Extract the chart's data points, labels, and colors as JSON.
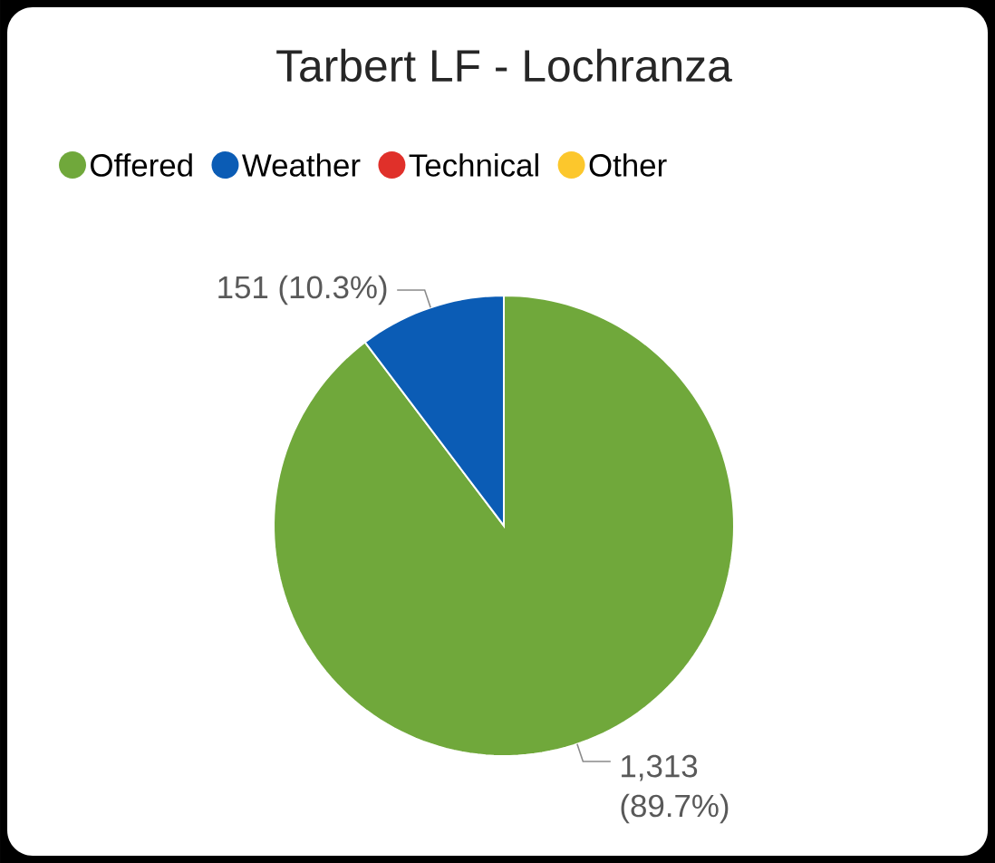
{
  "chart_data": {
    "type": "pie",
    "title": "Tarbert LF - Lochranza",
    "categories": [
      "Offered",
      "Weather",
      "Technical",
      "Other"
    ],
    "values": [
      1313,
      151,
      0,
      0
    ],
    "colors": [
      "#70a83b",
      "#0b5cb5",
      "#e0302a",
      "#fcc72c"
    ],
    "value_labels": [
      "1,313 (89.7%)",
      "151 (10.3%)",
      null,
      null
    ],
    "legend": "top"
  }
}
